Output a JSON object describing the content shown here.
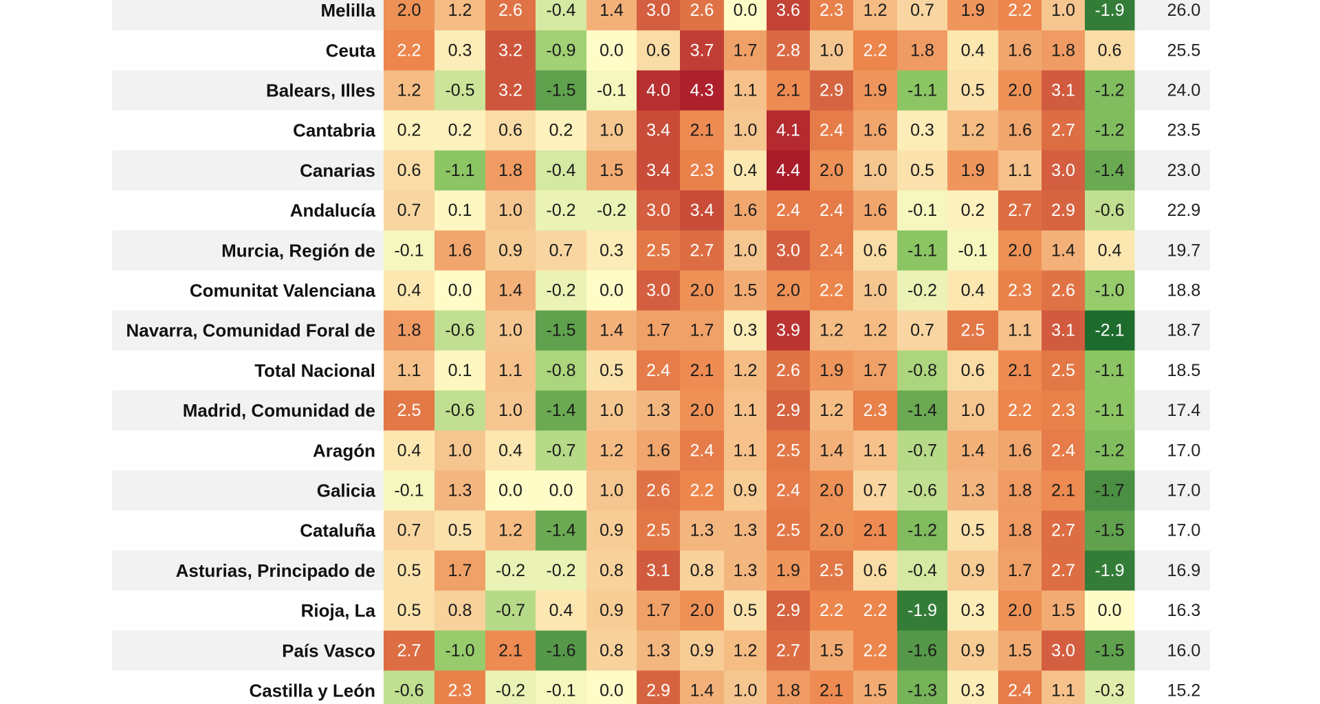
{
  "chart_data": {
    "type": "heatmap",
    "title": "",
    "xlabel": "",
    "ylabel": "",
    "color_scale": {
      "low": "#1e6b2e",
      "mid": "#fffcc8",
      "high": "#ab1c2a",
      "domain": [
        -2.1,
        0.0,
        4.4
      ]
    },
    "row_stripe_color": "#f2f2f2",
    "rows": [
      {
        "label": "Melilla",
        "values": [
          2.0,
          1.2,
          2.6,
          -0.4,
          1.4,
          3.0,
          2.6,
          0.0,
          3.6,
          2.3,
          1.2,
          0.7,
          1.9,
          2.2,
          1.0,
          -1.9
        ],
        "total": "26.0"
      },
      {
        "label": "Ceuta",
        "values": [
          2.2,
          0.3,
          3.2,
          -0.9,
          0.0,
          0.6,
          3.7,
          1.7,
          2.8,
          1.0,
          2.2,
          1.8,
          0.4,
          1.6,
          1.8,
          0.6
        ],
        "total": "25.5"
      },
      {
        "label": "Balears, Illes",
        "values": [
          1.2,
          -0.5,
          3.2,
          -1.5,
          -0.1,
          4.0,
          4.3,
          1.1,
          2.1,
          2.9,
          1.9,
          -1.1,
          0.5,
          2.0,
          3.1,
          -1.2
        ],
        "total": "24.0"
      },
      {
        "label": "Cantabria",
        "values": [
          0.2,
          0.2,
          0.6,
          0.2,
          1.0,
          3.4,
          2.1,
          1.0,
          4.1,
          2.4,
          1.6,
          0.3,
          1.2,
          1.6,
          2.7,
          -1.2
        ],
        "total": "23.5"
      },
      {
        "label": "Canarias",
        "values": [
          0.6,
          -1.1,
          1.8,
          -0.4,
          1.5,
          3.4,
          2.3,
          0.4,
          4.4,
          2.0,
          1.0,
          0.5,
          1.9,
          1.1,
          3.0,
          -1.4
        ],
        "total": "23.0"
      },
      {
        "label": "Andalucía",
        "values": [
          0.7,
          0.1,
          1.0,
          -0.2,
          -0.2,
          3.0,
          3.4,
          1.6,
          2.4,
          2.4,
          1.6,
          -0.1,
          0.2,
          2.7,
          2.9,
          -0.6
        ],
        "total": "22.9"
      },
      {
        "label": "Murcia, Región de",
        "values": [
          -0.1,
          1.6,
          0.9,
          0.7,
          0.3,
          2.5,
          2.7,
          1.0,
          3.0,
          2.4,
          0.6,
          -1.1,
          -0.1,
          2.0,
          1.4,
          0.4
        ],
        "total": "19.7"
      },
      {
        "label": "Comunitat Valenciana",
        "values": [
          0.4,
          0.0,
          1.4,
          -0.2,
          0.0,
          3.0,
          2.0,
          1.5,
          2.0,
          2.2,
          1.0,
          -0.2,
          0.4,
          2.3,
          2.6,
          -1.0
        ],
        "total": "18.8"
      },
      {
        "label": "Navarra, Comunidad Foral de",
        "values": [
          1.8,
          -0.6,
          1.0,
          -1.5,
          1.4,
          1.7,
          1.7,
          0.3,
          3.9,
          1.2,
          1.2,
          0.7,
          2.5,
          1.1,
          3.1,
          -2.1
        ],
        "total": "18.7"
      },
      {
        "label": "Total Nacional",
        "values": [
          1.1,
          0.1,
          1.1,
          -0.8,
          0.5,
          2.4,
          2.1,
          1.2,
          2.6,
          1.9,
          1.7,
          -0.8,
          0.6,
          2.1,
          2.5,
          -1.1
        ],
        "total": "18.5"
      },
      {
        "label": "Madrid, Comunidad de",
        "values": [
          2.5,
          -0.6,
          1.0,
          -1.4,
          1.0,
          1.3,
          2.0,
          1.1,
          2.9,
          1.2,
          2.3,
          -1.4,
          1.0,
          2.2,
          2.3,
          -1.1
        ],
        "total": "17.4"
      },
      {
        "label": "Aragón",
        "values": [
          0.4,
          1.0,
          0.4,
          -0.7,
          1.2,
          1.6,
          2.4,
          1.1,
          2.5,
          1.4,
          1.1,
          -0.7,
          1.4,
          1.6,
          2.4,
          -1.2
        ],
        "total": "17.0"
      },
      {
        "label": "Galicia",
        "values": [
          -0.1,
          1.3,
          0.0,
          0.0,
          1.0,
          2.6,
          2.2,
          0.9,
          2.4,
          2.0,
          0.7,
          -0.6,
          1.3,
          1.8,
          2.1,
          -1.7
        ],
        "total": "17.0"
      },
      {
        "label": "Cataluña",
        "values": [
          0.7,
          0.5,
          1.2,
          -1.4,
          0.9,
          2.5,
          1.3,
          1.3,
          2.5,
          2.0,
          2.1,
          -1.2,
          0.5,
          1.8,
          2.7,
          -1.5
        ],
        "total": "17.0"
      },
      {
        "label": "Asturias, Principado de",
        "values": [
          0.5,
          1.7,
          -0.2,
          -0.2,
          0.8,
          3.1,
          0.8,
          1.3,
          1.9,
          2.5,
          0.6,
          -0.4,
          0.9,
          1.7,
          2.7,
          -1.9
        ],
        "total": "16.9"
      },
      {
        "label": "Rioja, La",
        "values": [
          0.5,
          0.8,
          -0.7,
          0.4,
          0.9,
          1.7,
          2.0,
          0.5,
          2.9,
          2.2,
          2.2,
          -1.9,
          0.3,
          2.0,
          1.5,
          0.0
        ],
        "total": "16.3"
      },
      {
        "label": "País Vasco",
        "values": [
          2.7,
          -1.0,
          2.1,
          -1.6,
          0.8,
          1.3,
          0.9,
          1.2,
          2.7,
          1.5,
          2.2,
          -1.6,
          0.9,
          1.5,
          3.0,
          -1.5
        ],
        "total": "16.0"
      },
      {
        "label": "Castilla y León",
        "values": [
          -0.6,
          2.3,
          -0.2,
          -0.1,
          0.0,
          2.9,
          1.4,
          1.0,
          1.8,
          2.1,
          1.5,
          -1.3,
          0.3,
          2.4,
          1.1,
          -0.3
        ],
        "total": "15.2"
      }
    ]
  }
}
